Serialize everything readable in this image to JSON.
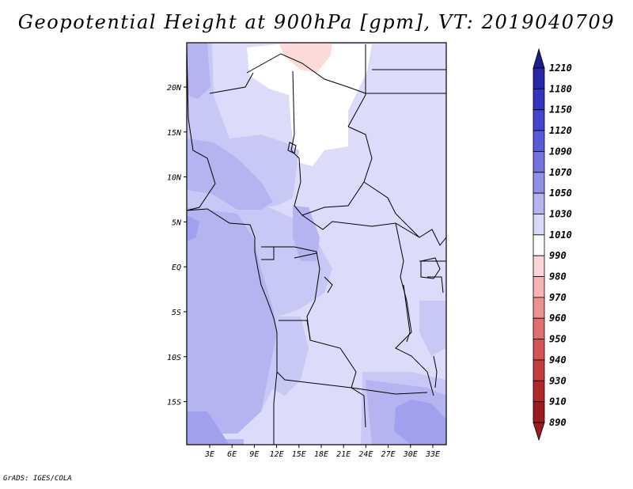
{
  "title": "Geopotential Height at 900hPa [gpm], VT: 2019040709",
  "credit": "GrADS: IGES/COLA",
  "map": {
    "lon_labels": [
      "3E",
      "6E",
      "9E",
      "12E",
      "15E",
      "18E",
      "21E",
      "24E",
      "27E",
      "30E",
      "33E"
    ],
    "lat_labels": [
      "20N",
      "15N",
      "10N",
      "5N",
      "EQ",
      "5S",
      "10S",
      "15S"
    ]
  },
  "colorbar": {
    "levels": [
      "1210",
      "1180",
      "1150",
      "1120",
      "1090",
      "1070",
      "1050",
      "1030",
      "1010",
      "990",
      "980",
      "970",
      "960",
      "950",
      "940",
      "930",
      "910",
      "890"
    ],
    "colors": [
      "#1c1c8c",
      "#2727a8",
      "#3434be",
      "#4444cc",
      "#5a5ad8",
      "#7474e0",
      "#9090e8",
      "#b4b4f0",
      "#d8d8f8",
      "#ffffff",
      "#fcd6d6",
      "#f6b4b4",
      "#ec9090",
      "#e07070",
      "#d45454",
      "#c43c3c",
      "#b02828",
      "#9a1c1c"
    ]
  },
  "field_colors": {
    "white": "#ffffff",
    "pale": "#dcdcfa",
    "light": "#c8c8f6",
    "medium": "#b4b4f0",
    "dark": "#a0a0ee",
    "pink": "#fcdada"
  }
}
